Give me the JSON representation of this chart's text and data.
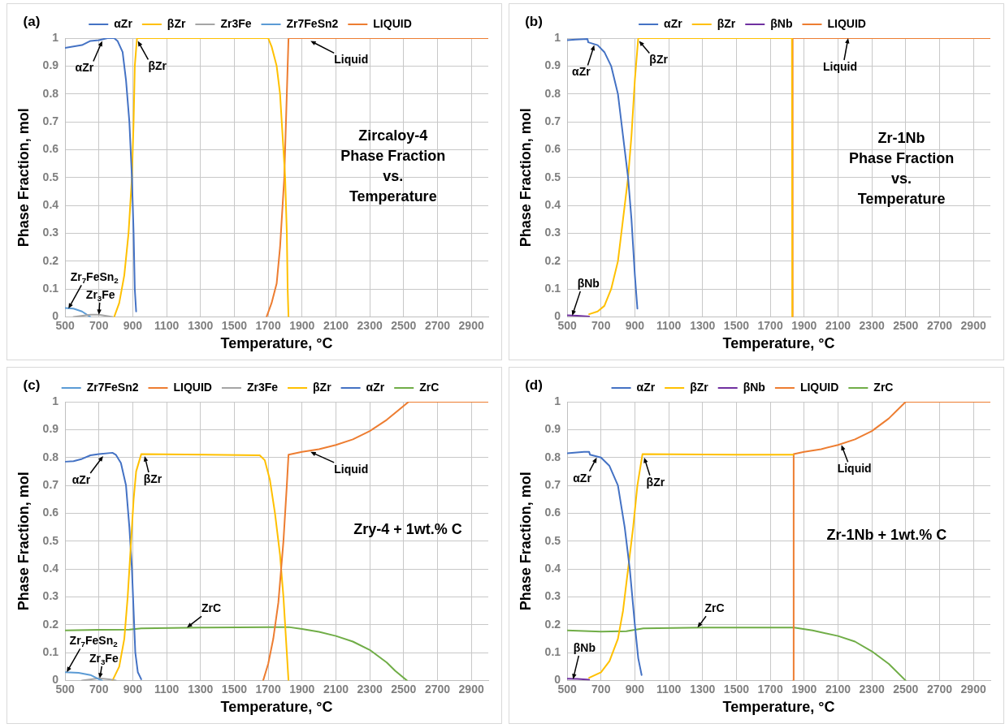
{
  "chart_data": [
    {
      "type": "line",
      "xlabel": "Temperature, °C",
      "ylabel": "Phase Fraction, mol",
      "xlim": [
        500,
        3000
      ],
      "xticks": [
        500,
        700,
        900,
        1100,
        1300,
        1500,
        1700,
        1900,
        2100,
        2300,
        2500,
        2700,
        2900
      ],
      "ylim": [
        0,
        1
      ],
      "yticks": [
        0,
        0.1,
        0.2,
        0.3,
        0.4,
        0.5,
        0.6,
        0.7,
        0.8,
        0.9,
        1
      ],
      "grid": true,
      "legend": "top",
      "marker": "none",
      "line_style": "solid",
      "series": [
        {
          "name": "αZr",
          "color": "#4472c4",
          "x": [
            500,
            600,
            650,
            700,
            750,
            790,
            810,
            840,
            860,
            880,
            895,
            905,
            912,
            920
          ],
          "values": [
            0.965,
            0.975,
            0.99,
            0.993,
            1.0,
            1.0,
            0.99,
            0.95,
            0.85,
            0.7,
            0.5,
            0.3,
            0.1,
            0.02
          ]
        },
        {
          "name": "βZr",
          "color": "#ffc000",
          "x": [
            790,
            820,
            850,
            875,
            895,
            905,
            912,
            925,
            1700,
            1720,
            1750,
            1770,
            1790,
            1800,
            1810,
            1815,
            1820
          ],
          "values": [
            0,
            0.05,
            0.15,
            0.3,
            0.5,
            0.7,
            0.9,
            1.0,
            1.0,
            0.97,
            0.9,
            0.8,
            0.6,
            0.5,
            0.3,
            0.1,
            0
          ]
        },
        {
          "name": "Zr3Fe",
          "color": "#a5a5a5",
          "x": [
            550,
            650,
            700,
            780
          ],
          "values": [
            0,
            0.008,
            0.008,
            0
          ]
        },
        {
          "name": "Zr7FeSn2",
          "color": "#5b9bd5",
          "x": [
            500,
            550,
            600,
            650
          ],
          "values": [
            0.032,
            0.03,
            0.02,
            0
          ]
        },
        {
          "name": "LIQUID",
          "color": "#ed7d31",
          "x": [
            1690,
            1720,
            1750,
            1770,
            1785,
            1795,
            1805,
            1815,
            1820,
            3000
          ],
          "values": [
            0,
            0.05,
            0.12,
            0.25,
            0.4,
            0.5,
            0.7,
            0.9,
            1.0,
            1.0
          ]
        }
      ],
      "annotations": [
        "(a)",
        "Zircaloy-4\nPhase Fraction\nvs.\nTemperature",
        {
          "text": "αZr",
          "x": 720,
          "y": 0.99
        },
        {
          "text": "βZr",
          "x": 930,
          "y": 0.99
        },
        {
          "text": "Liquid",
          "x": 1950,
          "y": 0.99
        },
        {
          "text": "Zr$_{7}$FeSn$_{2}$",
          "x": 520,
          "y": 0.03
        },
        {
          "text": "Zr$_{3}$Fe",
          "x": 700,
          "y": 0.008
        }
      ]
    },
    {
      "type": "line",
      "xlabel": "Temperature, °C",
      "ylabel": "Phase Fraction, mol",
      "xlim": [
        500,
        3000
      ],
      "xticks": [
        500,
        700,
        900,
        1100,
        1300,
        1500,
        1700,
        1900,
        2100,
        2300,
        2500,
        2700,
        2900
      ],
      "ylim": [
        0,
        1
      ],
      "yticks": [
        0,
        0.1,
        0.2,
        0.3,
        0.4,
        0.5,
        0.6,
        0.7,
        0.8,
        0.9,
        1
      ],
      "grid": true,
      "legend": "top",
      "marker": "none",
      "line_style": "solid",
      "series": [
        {
          "name": "αZr",
          "color": "#4472c4",
          "x": [
            500,
            550,
            620,
            625,
            680,
            720,
            760,
            800,
            830,
            860,
            880,
            900,
            915
          ],
          "values": [
            0.993,
            0.995,
            0.997,
            0.985,
            0.975,
            0.95,
            0.9,
            0.8,
            0.65,
            0.5,
            0.35,
            0.15,
            0.03
          ]
        },
        {
          "name": "βZr",
          "color": "#ffc000",
          "x": [
            630,
            680,
            720,
            760,
            800,
            830,
            860,
            880,
            900,
            920,
            1828,
            1830
          ],
          "values": [
            0.01,
            0.02,
            0.04,
            0.1,
            0.2,
            0.35,
            0.5,
            0.65,
            0.85,
            1.0,
            1.0,
            0
          ]
        },
        {
          "name": "βNb",
          "color": "#7030a0",
          "x": [
            500,
            560,
            630
          ],
          "values": [
            0.006,
            0.005,
            0.002
          ]
        },
        {
          "name": "LIQUID",
          "color": "#ed7d31",
          "x": [
            1830,
            1832,
            3000
          ],
          "values": [
            0,
            1.0,
            1.0
          ]
        }
      ],
      "annotations": [
        "(b)",
        "Zr-1Nb\nPhase Fraction\nvs.\nTemperature",
        {
          "text": "αZr",
          "x": 660,
          "y": 0.975
        },
        {
          "text": "βZr",
          "x": 925,
          "y": 0.99
        },
        {
          "text": "Liquid",
          "x": 2160,
          "y": 1.0
        },
        {
          "text": "βNb",
          "x": 530,
          "y": 0.005
        }
      ]
    },
    {
      "type": "line",
      "xlabel": "Temperature, °C",
      "ylabel": "Phase Fraction, mol",
      "xlim": [
        500,
        3000
      ],
      "xticks": [
        500,
        700,
        900,
        1100,
        1300,
        1500,
        1700,
        1900,
        2100,
        2300,
        2500,
        2700,
        2900
      ],
      "ylim": [
        0,
        1
      ],
      "yticks": [
        0,
        0.1,
        0.2,
        0.3,
        0.4,
        0.5,
        0.6,
        0.7,
        0.8,
        0.9,
        1
      ],
      "grid": true,
      "legend": "top",
      "marker": "none",
      "line_style": "solid",
      "series": [
        {
          "name": "Zr7FeSn2",
          "color": "#5b9bd5",
          "x": [
            500,
            580,
            650,
            700,
            720
          ],
          "values": [
            0.03,
            0.028,
            0.02,
            0.005,
            0
          ]
        },
        {
          "name": "LIQUID",
          "color": "#ed7d31",
          "x": [
            1670,
            1700,
            1730,
            1760,
            1790,
            1810,
            1820,
            1900,
            2000,
            2100,
            2200,
            2300,
            2400,
            2530,
            3000
          ],
          "values": [
            0,
            0.06,
            0.15,
            0.28,
            0.5,
            0.7,
            0.81,
            0.82,
            0.83,
            0.845,
            0.865,
            0.895,
            0.935,
            1.0,
            1.0
          ]
        },
        {
          "name": "Zr3Fe",
          "color": "#a5a5a5",
          "x": [
            600,
            700,
            760,
            800
          ],
          "values": [
            0,
            0.008,
            0.005,
            0
          ]
        },
        {
          "name": "βZr",
          "color": "#ffc000",
          "x": [
            780,
            820,
            850,
            870,
            890,
            905,
            920,
            950,
            1650,
            1680,
            1710,
            1740,
            1770,
            1790,
            1810,
            1820
          ],
          "values": [
            0,
            0.05,
            0.15,
            0.3,
            0.5,
            0.65,
            0.75,
            0.812,
            0.808,
            0.79,
            0.72,
            0.6,
            0.45,
            0.3,
            0.1,
            0
          ]
        },
        {
          "name": "αZr",
          "color": "#4472c4",
          "x": [
            500,
            550,
            600,
            650,
            700,
            780,
            800,
            830,
            860,
            880,
            895,
            905,
            915,
            930,
            950
          ],
          "values": [
            0.785,
            0.787,
            0.795,
            0.808,
            0.812,
            0.817,
            0.81,
            0.78,
            0.7,
            0.55,
            0.4,
            0.25,
            0.1,
            0.03,
            0.005
          ]
        },
        {
          "name": "ZrC",
          "color": "#70ad47",
          "x": [
            500,
            700,
            880,
            950,
            1300,
            1700,
            1820,
            1900,
            2000,
            2100,
            2200,
            2300,
            2400,
            2450,
            2520
          ],
          "values": [
            0.18,
            0.182,
            0.183,
            0.187,
            0.19,
            0.192,
            0.192,
            0.185,
            0.175,
            0.16,
            0.14,
            0.11,
            0.065,
            0.035,
            0
          ]
        }
      ],
      "annotations": [
        "(c)",
        "Zry-4 + 1wt.% C",
        {
          "text": "αZr",
          "x": 725,
          "y": 0.805
        },
        {
          "text": "βZr",
          "x": 970,
          "y": 0.805
        },
        {
          "text": "Liquid",
          "x": 1950,
          "y": 0.82
        },
        {
          "text": "ZrC",
          "x": 1220,
          "y": 0.19
        },
        {
          "text": "Zr$_{7}$FeSn$_{2}$",
          "x": 510,
          "y": 0.03
        },
        {
          "text": "Zr$_{3}$Fe",
          "x": 705,
          "y": 0.008
        }
      ]
    },
    {
      "type": "line",
      "xlabel": "Temperature, °C",
      "ylabel": "Phase Fraction, mol",
      "xlim": [
        500,
        3000
      ],
      "xticks": [
        500,
        700,
        900,
        1100,
        1300,
        1500,
        1700,
        1900,
        2100,
        2300,
        2500,
        2700,
        2900
      ],
      "ylim": [
        0,
        1
      ],
      "yticks": [
        0,
        0.1,
        0.2,
        0.3,
        0.4,
        0.5,
        0.6,
        0.7,
        0.8,
        0.9,
        1
      ],
      "grid": true,
      "legend": "top",
      "marker": "none",
      "line_style": "solid",
      "series": [
        {
          "name": "αZr",
          "color": "#4472c4",
          "x": [
            500,
            600,
            630,
            635,
            700,
            750,
            800,
            840,
            870,
            900,
            920,
            940
          ],
          "values": [
            0.815,
            0.82,
            0.82,
            0.81,
            0.8,
            0.77,
            0.7,
            0.55,
            0.4,
            0.2,
            0.08,
            0.02
          ]
        },
        {
          "name": "βZr",
          "color": "#ffc000",
          "x": [
            630,
            700,
            750,
            800,
            830,
            860,
            890,
            915,
            945,
            1500,
            1835
          ],
          "values": [
            0.01,
            0.03,
            0.07,
            0.15,
            0.25,
            0.4,
            0.55,
            0.7,
            0.812,
            0.81,
            0.81
          ]
        },
        {
          "name": "βNb",
          "color": "#7030a0",
          "x": [
            500,
            560,
            630
          ],
          "values": [
            0.007,
            0.006,
            0.003
          ]
        },
        {
          "name": "LIQUID",
          "color": "#ed7d31",
          "x": [
            1835,
            1838,
            1900,
            2000,
            2100,
            2200,
            2300,
            2400,
            2500,
            3000
          ],
          "values": [
            0,
            0.812,
            0.82,
            0.83,
            0.845,
            0.865,
            0.895,
            0.94,
            1.0,
            1.0
          ]
        },
        {
          "name": "ZrC",
          "color": "#70ad47",
          "x": [
            500,
            700,
            850,
            950,
            1300,
            1800,
            1840,
            1950,
            2100,
            2200,
            2300,
            2400,
            2500
          ],
          "values": [
            0.18,
            0.176,
            0.177,
            0.187,
            0.19,
            0.19,
            0.19,
            0.18,
            0.16,
            0.14,
            0.105,
            0.06,
            0
          ]
        }
      ],
      "annotations": [
        "(d)",
        "Zr-1Nb + 1wt.% C",
        {
          "text": "αZr",
          "x": 675,
          "y": 0.8
        },
        {
          "text": "βZr",
          "x": 955,
          "y": 0.8
        },
        {
          "text": "Liquid",
          "x": 2120,
          "y": 0.845
        },
        {
          "text": "ZrC",
          "x": 1270,
          "y": 0.19
        },
        {
          "text": "βNb",
          "x": 535,
          "y": 0.005
        }
      ]
    }
  ]
}
